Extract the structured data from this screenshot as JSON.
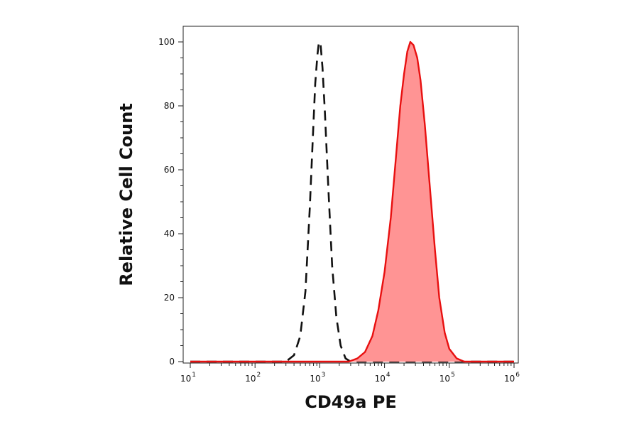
{
  "chart_data": {
    "type": "area",
    "xlabel": "CD49a PE",
    "ylabel": "Relative Cell Count",
    "x_scale": "log",
    "xlim": [
      10,
      1000000
    ],
    "ylim": [
      0,
      100
    ],
    "x_ticks": [
      {
        "value": 10,
        "base": "10",
        "exp": "1"
      },
      {
        "value": 100,
        "base": "10",
        "exp": "2"
      },
      {
        "value": 1000,
        "base": "10",
        "exp": "3"
      },
      {
        "value": 10000,
        "base": "10",
        "exp": "4"
      },
      {
        "value": 100000,
        "base": "10",
        "exp": "5"
      },
      {
        "value": 1000000,
        "base": "10",
        "exp": "6"
      }
    ],
    "y_ticks": [
      {
        "value": 0,
        "label": "0"
      },
      {
        "value": 20,
        "label": "20"
      },
      {
        "value": 40,
        "label": "40"
      },
      {
        "value": 60,
        "label": "60"
      },
      {
        "value": 80,
        "label": "80"
      },
      {
        "value": 100,
        "label": "100"
      }
    ],
    "grid": false,
    "series": [
      {
        "style": "dashed",
        "color": "#111111",
        "fill": "none",
        "points": [
          [
            10,
            0
          ],
          [
            300,
            0
          ],
          [
            400,
            2
          ],
          [
            500,
            8
          ],
          [
            600,
            22
          ],
          [
            700,
            48
          ],
          [
            780,
            70
          ],
          [
            850,
            87
          ],
          [
            920,
            96
          ],
          [
            970,
            100
          ],
          [
            1030,
            99
          ],
          [
            1100,
            92
          ],
          [
            1200,
            78
          ],
          [
            1350,
            55
          ],
          [
            1550,
            30
          ],
          [
            1800,
            14
          ],
          [
            2100,
            5
          ],
          [
            2500,
            1
          ],
          [
            3000,
            0
          ],
          [
            1000000,
            0
          ]
        ]
      },
      {
        "style": "solid",
        "color": "#e81010",
        "fill": "#ff9494",
        "points": [
          [
            10,
            0
          ],
          [
            2800,
            0
          ],
          [
            3800,
            1
          ],
          [
            5000,
            3
          ],
          [
            6500,
            8
          ],
          [
            8000,
            16
          ],
          [
            10000,
            28
          ],
          [
            12500,
            45
          ],
          [
            15000,
            64
          ],
          [
            17500,
            80
          ],
          [
            20000,
            90
          ],
          [
            22500,
            97
          ],
          [
            25000,
            100
          ],
          [
            28000,
            99
          ],
          [
            32000,
            95
          ],
          [
            36000,
            88
          ],
          [
            42000,
            74
          ],
          [
            50000,
            55
          ],
          [
            60000,
            35
          ],
          [
            70000,
            20
          ],
          [
            85000,
            9
          ],
          [
            100000,
            4
          ],
          [
            130000,
            1
          ],
          [
            170000,
            0
          ],
          [
            1000000,
            0
          ]
        ]
      }
    ]
  }
}
